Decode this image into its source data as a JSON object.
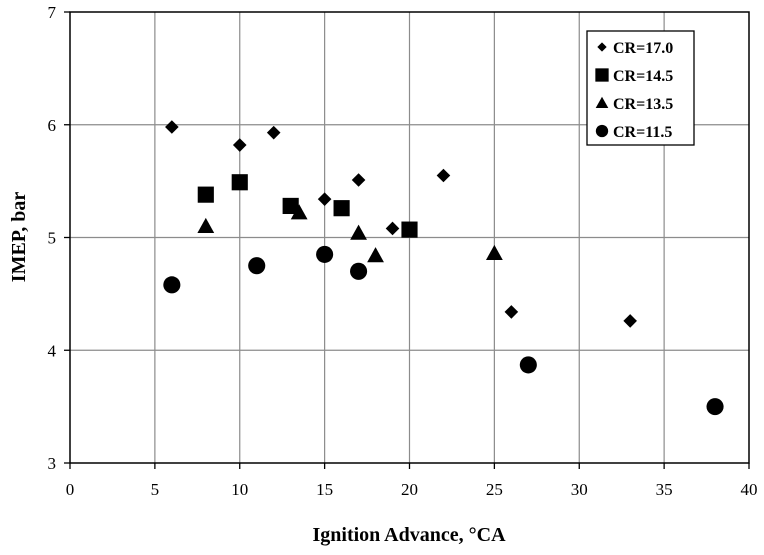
{
  "chart_data": {
    "type": "scatter",
    "title": "",
    "xlabel": "Ignition Advance, °CA",
    "ylabel": "IMEP, bar",
    "xlim": [
      0,
      40
    ],
    "ylim": [
      3,
      7
    ],
    "x_ticks": [
      0,
      5,
      10,
      15,
      20,
      25,
      30,
      35,
      40
    ],
    "y_ticks": [
      3,
      4,
      5,
      6,
      7
    ],
    "grid": true,
    "legend_position": "top-right",
    "series": [
      {
        "name": "CR=17.0",
        "marker": "diamond",
        "color": "#000000",
        "points": [
          {
            "x": 6,
            "y": 5.98
          },
          {
            "x": 10,
            "y": 5.82
          },
          {
            "x": 12,
            "y": 5.93
          },
          {
            "x": 15,
            "y": 5.34
          },
          {
            "x": 17,
            "y": 5.51
          },
          {
            "x": 19,
            "y": 5.08
          },
          {
            "x": 22,
            "y": 5.55
          },
          {
            "x": 26,
            "y": 4.34
          },
          {
            "x": 33,
            "y": 4.26
          }
        ]
      },
      {
        "name": "CR=14.5",
        "marker": "square",
        "color": "#000000",
        "points": [
          {
            "x": 8,
            "y": 5.38
          },
          {
            "x": 10,
            "y": 5.49
          },
          {
            "x": 13,
            "y": 5.28
          },
          {
            "x": 16,
            "y": 5.26
          },
          {
            "x": 20,
            "y": 5.07
          }
        ]
      },
      {
        "name": "CR=13.5",
        "marker": "triangle",
        "color": "#000000",
        "points": [
          {
            "x": 8,
            "y": 5.1
          },
          {
            "x": 13.5,
            "y": 5.22
          },
          {
            "x": 17,
            "y": 5.04
          },
          {
            "x": 18,
            "y": 4.84
          },
          {
            "x": 25,
            "y": 4.86
          }
        ]
      },
      {
        "name": "CR=11.5",
        "marker": "circle",
        "color": "#000000",
        "points": [
          {
            "x": 6,
            "y": 4.58
          },
          {
            "x": 11,
            "y": 4.75
          },
          {
            "x": 15,
            "y": 4.85
          },
          {
            "x": 17,
            "y": 4.7
          },
          {
            "x": 27,
            "y": 3.87
          },
          {
            "x": 38,
            "y": 3.5
          }
        ]
      }
    ]
  }
}
